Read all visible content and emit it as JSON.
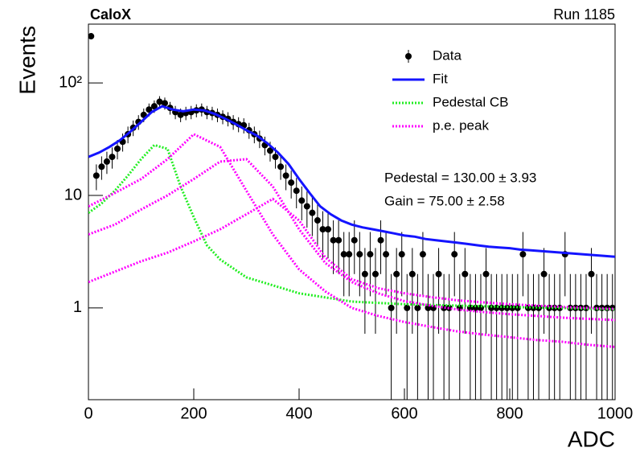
{
  "chart_data": {
    "type": "scatter",
    "title": "CaloX",
    "subtitle": "Run 1185",
    "x_label": "ADC",
    "y_label": "Events",
    "annotations": [
      "Pedestal = 130.00 ± 3.93",
      "Gain = 75.00 ± 2.58"
    ],
    "log_y": true,
    "xlim": [
      0,
      1000
    ],
    "ylim": [
      0.153,
      333
    ],
    "xticks": [
      0,
      200,
      400,
      600,
      800,
      1000
    ],
    "yticks": [
      1,
      10,
      {
        "value": 100,
        "label": "10²"
      }
    ],
    "legend": "top-right",
    "series": [
      {
        "name": "Data",
        "color": "#000000",
        "style": "points",
        "x": [
          5,
          15,
          25,
          35,
          45,
          55,
          65,
          75,
          85,
          95,
          105,
          115,
          125,
          135,
          145,
          155,
          165,
          175,
          185,
          195,
          205,
          215,
          225,
          235,
          245,
          255,
          265,
          275,
          285,
          295,
          305,
          315,
          325,
          335,
          345,
          355,
          365,
          375,
          385,
          395,
          405,
          415,
          425,
          435,
          445,
          455,
          465,
          475,
          485,
          495,
          505,
          515,
          525,
          535,
          545,
          555,
          565,
          575,
          585,
          595,
          605,
          615,
          625,
          635,
          645,
          655,
          665,
          675,
          685,
          695,
          705,
          715,
          725,
          735,
          745,
          755,
          765,
          775,
          785,
          795,
          805,
          815,
          825,
          835,
          845,
          855,
          865,
          875,
          885,
          895,
          905,
          915,
          925,
          935,
          945,
          955,
          965,
          975,
          985,
          995
        ],
        "values": [
          260,
          15,
          18,
          20,
          22,
          26,
          30,
          35,
          40,
          45,
          52,
          58,
          62,
          68,
          66,
          60,
          55,
          52,
          54,
          55,
          57,
          58,
          55,
          54,
          52,
          50,
          48,
          45,
          43,
          42,
          38,
          35,
          32,
          28,
          25,
          22,
          18,
          15,
          13,
          11,
          9,
          8,
          7,
          6,
          5,
          5,
          4,
          4,
          3,
          3,
          4,
          3,
          2,
          3,
          2,
          4,
          3,
          1,
          2,
          3,
          1,
          2,
          1,
          3,
          1,
          1,
          2,
          1,
          1,
          3,
          1,
          2,
          1,
          1,
          1,
          2,
          1,
          1,
          1,
          1,
          1,
          1,
          3,
          1,
          1,
          1,
          2,
          1,
          1,
          1,
          3,
          1,
          1,
          1,
          1,
          2,
          1,
          1,
          1,
          1
        ],
        "errors": [
          16.12,
          3.87,
          4.24,
          4.47,
          4.69,
          5.1,
          5.48,
          5.92,
          6.32,
          6.71,
          7.21,
          7.62,
          7.87,
          8.25,
          8.12,
          7.75,
          7.42,
          7.21,
          7.35,
          7.42,
          7.55,
          7.62,
          7.42,
          7.35,
          7.21,
          7.07,
          6.93,
          6.71,
          6.56,
          6.48,
          6.16,
          5.92,
          5.66,
          5.29,
          5,
          4.69,
          4.24,
          3.87,
          3.61,
          3.32,
          3,
          2.83,
          2.65,
          2.45,
          2.24,
          2.24,
          2,
          2,
          1.73,
          1.73,
          2,
          1.73,
          1.41,
          1.73,
          1.41,
          2,
          1.73,
          1,
          1.41,
          1.73,
          1,
          1.41,
          1,
          1.73,
          1,
          1,
          1.41,
          1,
          1,
          1.73,
          1,
          1.41,
          1,
          1,
          1,
          1.41,
          1,
          1,
          1,
          1,
          1,
          1,
          1.73,
          1,
          1,
          1,
          1.41,
          1,
          1,
          1,
          1.73,
          1,
          1,
          1,
          1,
          1.41,
          1,
          1,
          1,
          1
        ]
      },
      {
        "name": "Fit",
        "color": "#1414ff",
        "style": "line",
        "x": [
          0,
          20,
          40,
          60,
          80,
          100,
          120,
          140,
          160,
          180,
          200,
          220,
          240,
          260,
          280,
          300,
          320,
          340,
          360,
          380,
          400,
          420,
          440,
          460,
          480,
          500,
          520,
          540,
          560,
          580,
          600,
          620,
          640,
          660,
          680,
          700,
          720,
          740,
          760,
          780,
          800,
          820,
          840,
          860,
          880,
          900,
          920,
          940,
          960,
          980,
          1000
        ],
        "values": [
          22,
          24,
          27,
          31,
          37,
          45,
          55,
          62,
          58,
          56,
          58,
          57,
          53,
          48,
          43,
          38,
          34,
          29,
          24,
          19,
          14,
          10.5,
          8,
          6.8,
          6,
          5.5,
          5.2,
          5,
          4.8,
          4.6,
          4.4,
          4.3,
          4.1,
          4,
          3.9,
          3.8,
          3.7,
          3.6,
          3.5,
          3.45,
          3.4,
          3.3,
          3.25,
          3.2,
          3.15,
          3.1,
          3.05,
          3,
          2.95,
          2.9,
          2.85
        ]
      },
      {
        "name": "Pedestal CB",
        "color": "#22ee22",
        "style": "dotted",
        "x": [
          0,
          25,
          50,
          75,
          100,
          125,
          150,
          175,
          200,
          225,
          250,
          300,
          400,
          500,
          600,
          700,
          800,
          900,
          1000
        ],
        "values": [
          7,
          8.5,
          11,
          15,
          21,
          28,
          26,
          12,
          6.4,
          3.6,
          2.7,
          1.87,
          1.35,
          1.14,
          1.08,
          1.05,
          1.02,
          1.0,
          0.97
        ]
      },
      {
        "name": "p.e. peak",
        "color": "#ff00ff",
        "style": "dotted",
        "x": [
          0,
          50,
          100,
          150,
          200,
          250,
          300,
          350,
          400,
          450,
          500,
          550,
          600,
          650,
          700,
          750,
          800,
          850,
          900,
          950,
          1000
        ],
        "curves": [
          [
            8,
            10.5,
            14,
            21,
            35,
            27,
            11,
            4.5,
            2.2,
            1.4,
            1.0,
            0.85,
            0.75,
            0.68,
            0.62,
            0.58,
            0.55,
            0.52,
            0.5,
            0.47,
            0.45
          ],
          [
            4.5,
            5.5,
            7.5,
            10,
            14,
            20,
            21,
            12,
            5,
            2.5,
            1.7,
            1.35,
            1.15,
            1.05,
            0.97,
            0.92,
            0.88,
            0.85,
            0.82,
            0.8,
            0.78
          ],
          [
            1.7,
            2.1,
            2.6,
            3.1,
            3.9,
            5,
            6.8,
            9.3,
            6,
            2.8,
            1.8,
            1.5,
            1.35,
            1.25,
            1.17,
            1.12,
            1.08,
            1.05,
            1.02,
            1.0,
            0.98
          ]
        ]
      }
    ]
  }
}
